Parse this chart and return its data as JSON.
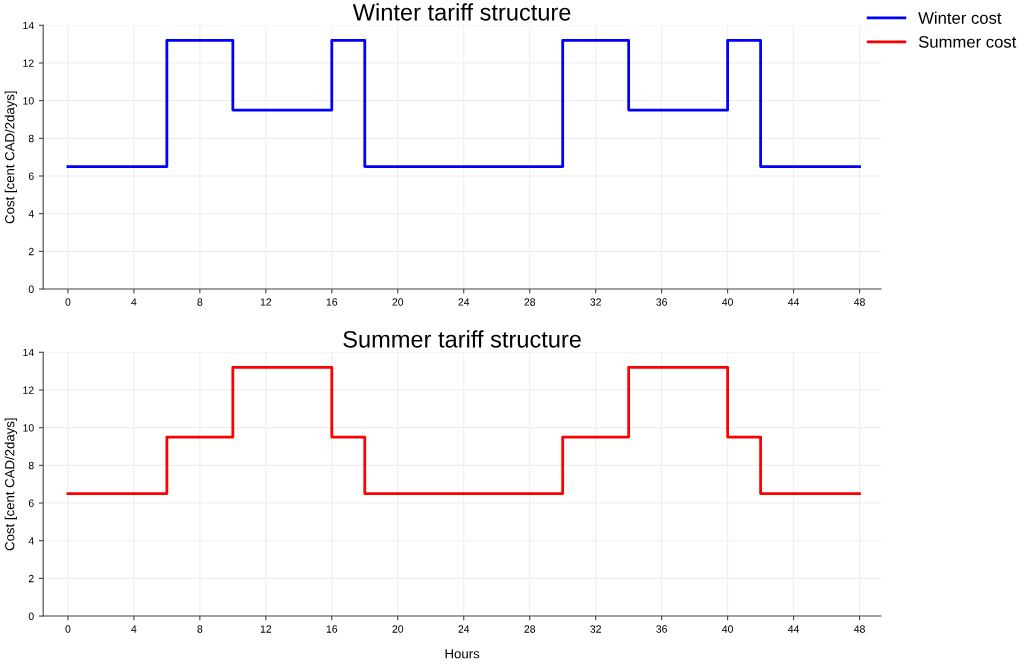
{
  "chart_data": [
    {
      "type": "step",
      "title": "Winter tariff structure",
      "ylabel": "Cost [cent CAD/2days]",
      "xlim": [
        -1.5,
        49.3
      ],
      "ylim": [
        0,
        14
      ],
      "xticks": [
        0,
        4,
        8,
        12,
        16,
        20,
        24,
        28,
        32,
        36,
        40,
        44,
        48
      ],
      "yticks": [
        0,
        2,
        4,
        6,
        8,
        10,
        12,
        14
      ],
      "grid": true,
      "legend": "top right",
      "series": [
        {
          "name": "Winter cost",
          "color": "#0000ff",
          "x": [
            0,
            6,
            10,
            16,
            18,
            30,
            34,
            40,
            42,
            48
          ],
          "values": [
            6.5,
            13.2,
            9.5,
            13.2,
            6.5,
            13.2,
            9.5,
            13.2,
            6.5,
            6.5
          ]
        }
      ]
    },
    {
      "type": "step",
      "title": "Summer tariff structure",
      "xlabel": "Hours",
      "ylabel": "Cost [cent CAD/2days]",
      "xlim": [
        -1.5,
        49.3
      ],
      "ylim": [
        0,
        14
      ],
      "xticks": [
        0,
        4,
        8,
        12,
        16,
        20,
        24,
        28,
        32,
        36,
        40,
        44,
        48
      ],
      "yticks": [
        0,
        2,
        4,
        6,
        8,
        10,
        12,
        14
      ],
      "grid": true,
      "legend": "top right",
      "series": [
        {
          "name": "Summer cost",
          "color": "#ff0000",
          "x": [
            0,
            6,
            10,
            16,
            18,
            30,
            34,
            40,
            42,
            48
          ],
          "values": [
            6.5,
            9.5,
            13.2,
            9.5,
            6.5,
            9.5,
            13.2,
            9.5,
            6.5,
            6.5
          ]
        }
      ]
    }
  ]
}
